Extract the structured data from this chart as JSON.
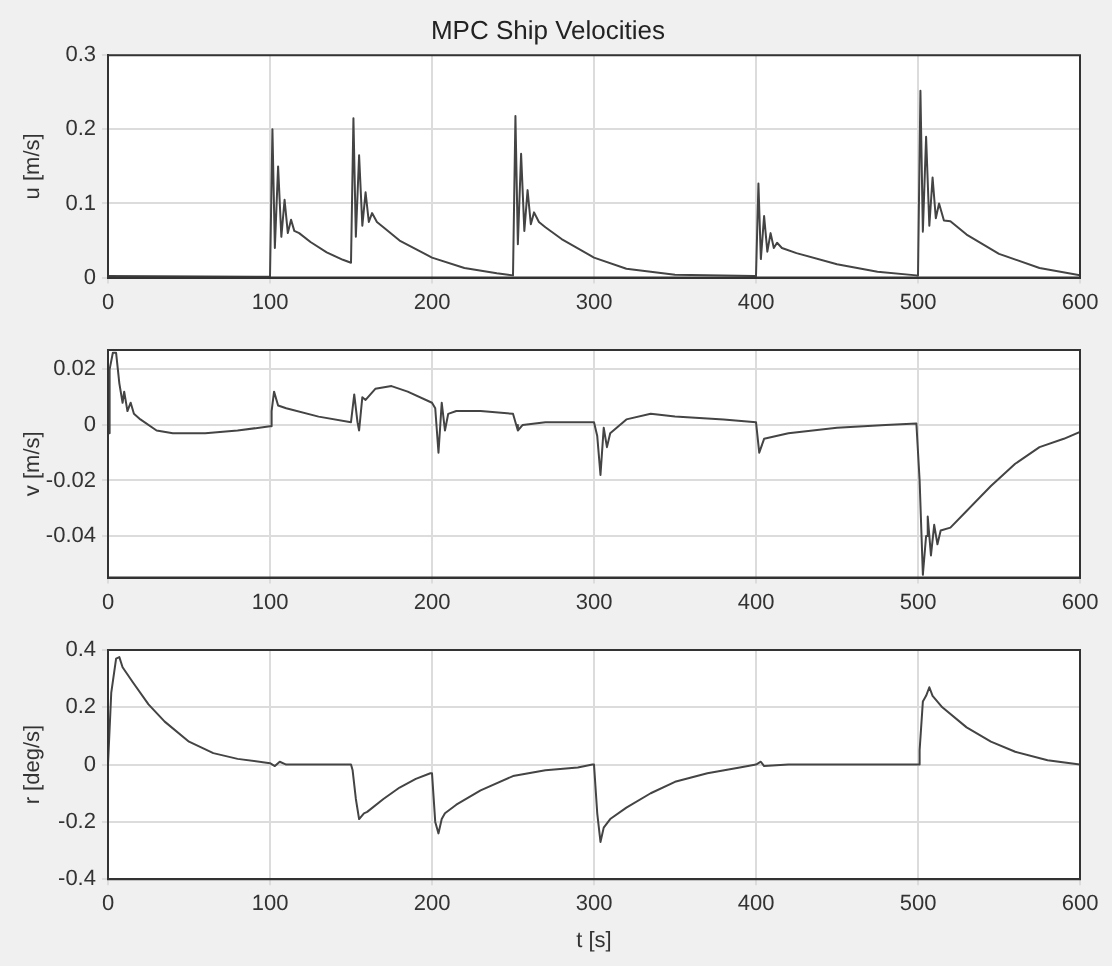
{
  "chart_data": [
    {
      "type": "line",
      "title": "MPC Ship Velocities",
      "ylabel": "u [m/s]",
      "xlim": [
        0,
        600
      ],
      "xticks": [
        0,
        100,
        200,
        300,
        400,
        500,
        600
      ],
      "ylim": [
        0,
        0.3
      ],
      "yticks": [
        0,
        0.1,
        0.2,
        0.3
      ],
      "grid": true,
      "legend": false,
      "marker": "none",
      "line_style": "solid",
      "series": [
        {
          "color": "#444444",
          "x": [
            0,
            99,
            100,
            101.5,
            103,
            105,
            107,
            109,
            111,
            113,
            115,
            118,
            125,
            135,
            145,
            150,
            151.5,
            153,
            155,
            157,
            159,
            161,
            163,
            166,
            170,
            180,
            200,
            220,
            240,
            250,
            251.5,
            253,
            255,
            257,
            259,
            261,
            263,
            266,
            270,
            280,
            300,
            320,
            350,
            399,
            400,
            401.5,
            403,
            405,
            407,
            409,
            411,
            413,
            416,
            425,
            450,
            475,
            499,
            500,
            501.5,
            503,
            505,
            507,
            509,
            511,
            513,
            516,
            520,
            530,
            550,
            575,
            600
          ],
          "values": [
            0.002,
            0.001,
            0.001,
            0.2,
            0.04,
            0.15,
            0.055,
            0.105,
            0.06,
            0.078,
            0.063,
            0.06,
            0.048,
            0.034,
            0.024,
            0.02,
            0.215,
            0.055,
            0.165,
            0.07,
            0.115,
            0.075,
            0.087,
            0.075,
            0.068,
            0.05,
            0.027,
            0.013,
            0.006,
            0.003,
            0.218,
            0.045,
            0.167,
            0.063,
            0.118,
            0.072,
            0.088,
            0.075,
            0.068,
            0.052,
            0.027,
            0.012,
            0.004,
            0.002,
            0.002,
            0.127,
            0.025,
            0.083,
            0.035,
            0.06,
            0.04,
            0.047,
            0.04,
            0.033,
            0.018,
            0.008,
            0.003,
            0.003,
            0.252,
            0.062,
            0.19,
            0.07,
            0.135,
            0.08,
            0.1,
            0.077,
            0.076,
            0.058,
            0.032,
            0.013,
            0.003
          ]
        }
      ]
    },
    {
      "type": "line",
      "ylabel": "v [m/s]",
      "xlim": [
        0,
        600
      ],
      "xticks": [
        0,
        100,
        200,
        300,
        400,
        500,
        600
      ],
      "ylim": [
        -0.055,
        0.027
      ],
      "yticks": [
        -0.04,
        -0.02,
        0,
        0.02
      ],
      "grid": true,
      "legend": false,
      "marker": "none",
      "line_style": "solid",
      "series": [
        {
          "color": "#444444",
          "x": [
            0,
            1,
            3,
            5,
            7,
            9,
            10,
            12,
            14,
            16,
            20,
            30,
            40,
            60,
            80,
            100,
            101,
            102.5,
            105,
            110,
            130,
            150,
            152,
            154,
            155,
            157,
            159,
            165,
            175,
            185,
            200,
            202,
            204,
            206,
            208,
            210,
            215,
            230,
            250,
            252,
            253,
            256,
            270,
            300,
            302,
            304,
            306,
            308,
            310,
            320,
            335,
            350,
            380,
            400,
            402,
            405,
            420,
            450,
            480,
            499,
            501,
            503,
            505,
            506,
            508,
            510,
            512,
            514,
            520,
            530,
            545,
            560,
            575,
            590,
            600
          ],
          "values": [
            -0.003,
            0.02,
            0.026,
            0.026,
            0.015,
            0.008,
            0.012,
            0.005,
            0.008,
            0.004,
            0.002,
            -0.002,
            -0.003,
            -0.003,
            -0.002,
            -0.0005,
            0.005,
            0.012,
            0.007,
            0.006,
            0.003,
            0.001,
            0.011,
            0.001,
            -0.002,
            0.01,
            0.009,
            0.013,
            0.014,
            0.012,
            0.008,
            0.006,
            -0.01,
            0.008,
            -0.002,
            0.004,
            0.005,
            0.005,
            0.004,
            0,
            -0.002,
            0,
            0.001,
            0.001,
            -0.004,
            -0.018,
            -0.001,
            -0.008,
            -0.003,
            0.002,
            0.004,
            0.003,
            0.002,
            0.001,
            -0.01,
            -0.005,
            -0.003,
            -0.001,
            0,
            0.0005,
            -0.02,
            -0.054,
            -0.04,
            -0.033,
            -0.047,
            -0.036,
            -0.043,
            -0.038,
            -0.037,
            -0.031,
            -0.022,
            -0.014,
            -0.008,
            -0.005,
            -0.0025
          ]
        }
      ]
    },
    {
      "type": "line",
      "xlabel": "t [s]",
      "ylabel": "r [deg/s]",
      "xlim": [
        0,
        600
      ],
      "xticks": [
        0,
        100,
        200,
        300,
        400,
        500,
        600
      ],
      "ylim": [
        -0.4,
        0.4
      ],
      "yticks": [
        -0.4,
        -0.2,
        0,
        0.2,
        0.4
      ],
      "grid": true,
      "legend": false,
      "marker": "none",
      "line_style": "solid",
      "series": [
        {
          "color": "#444444",
          "x": [
            0,
            2,
            5,
            7,
            9,
            15,
            25,
            35,
            50,
            65,
            80,
            100,
            103,
            106,
            110,
            150,
            151,
            153,
            155,
            158,
            160,
            170,
            180,
            190,
            199,
            200,
            202,
            204,
            206,
            208,
            215,
            230,
            250,
            270,
            290,
            299,
            300,
            302,
            304,
            306,
            310,
            320,
            335,
            350,
            370,
            390,
            400,
            403,
            405,
            420,
            500,
            501,
            503,
            505,
            507,
            509,
            515,
            530,
            545,
            560,
            580,
            600
          ],
          "values": [
            0,
            0.25,
            0.37,
            0.375,
            0.34,
            0.29,
            0.21,
            0.15,
            0.08,
            0.04,
            0.02,
            0.005,
            -0.005,
            0.01,
            0,
            0,
            -0.02,
            -0.12,
            -0.19,
            -0.17,
            -0.165,
            -0.12,
            -0.08,
            -0.05,
            -0.03,
            -0.03,
            -0.2,
            -0.24,
            -0.19,
            -0.17,
            -0.14,
            -0.09,
            -0.04,
            -0.02,
            -0.01,
            0,
            0,
            -0.17,
            -0.27,
            -0.22,
            -0.19,
            -0.15,
            -0.1,
            -0.06,
            -0.03,
            -0.01,
            0,
            0.01,
            -0.005,
            0,
            0,
            0.05,
            0.22,
            0.24,
            0.27,
            0.24,
            0.2,
            0.13,
            0.08,
            0.045,
            0.015,
            0
          ]
        }
      ]
    }
  ]
}
